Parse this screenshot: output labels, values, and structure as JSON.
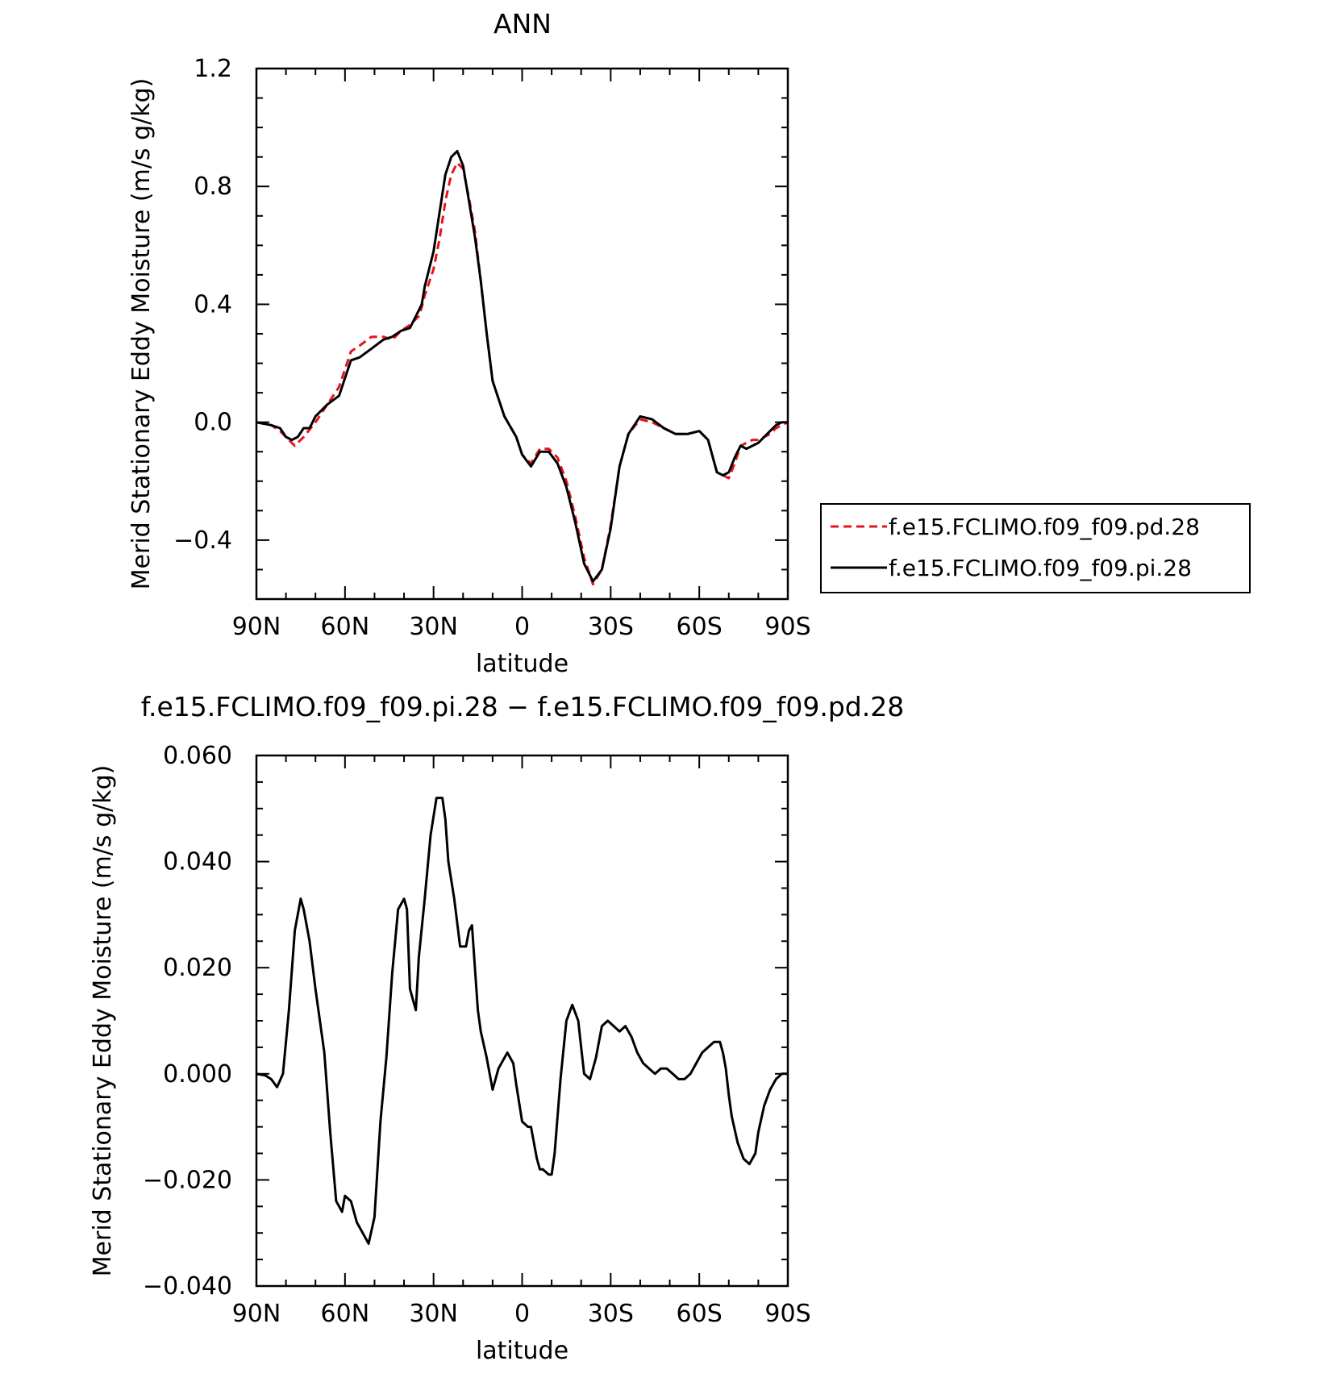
{
  "chart_data": [
    {
      "type": "line",
      "title": "ANN",
      "xlabel": "latitude",
      "ylabel": "Merid Stationary Eddy Moisture (m/s g/kg)",
      "xlim": [
        90,
        -90
      ],
      "ylim": [
        -0.6,
        1.2
      ],
      "x_ticks": [
        {
          "value": 90,
          "label": "90N"
        },
        {
          "value": 60,
          "label": "60N"
        },
        {
          "value": 30,
          "label": "30N"
        },
        {
          "value": 0,
          "label": "0"
        },
        {
          "value": -30,
          "label": "30S"
        },
        {
          "value": -60,
          "label": "60S"
        },
        {
          "value": -90,
          "label": "90S"
        }
      ],
      "y_ticks": [
        {
          "value": 1.2,
          "label": "1.2"
        },
        {
          "value": 0.8,
          "label": "0.8"
        },
        {
          "value": 0.4,
          "label": "0.4"
        },
        {
          "value": 0.0,
          "label": "0.0"
        },
        {
          "value": -0.4,
          "label": "−0.4"
        }
      ],
      "legend_position": "outside-right",
      "series": [
        {
          "name": "f.e15.FCLIMO.f09_f09.pd.28",
          "color": "#e8141c",
          "style": "dashed",
          "x": [
            90,
            85,
            82,
            79,
            77,
            74,
            70,
            66,
            62,
            58,
            55,
            51,
            47,
            44,
            41,
            38,
            35,
            34,
            33,
            30,
            28,
            26,
            24,
            22,
            20,
            18,
            16,
            14,
            12,
            10,
            6,
            2,
            0,
            -3,
            -6,
            -9,
            -12,
            -15,
            -18,
            -21,
            -24,
            -27,
            -30,
            -33,
            -36,
            -40,
            -44,
            -48,
            -52,
            -56,
            -60,
            -63,
            -66,
            -68,
            -70,
            -72,
            -74,
            -76,
            -78,
            -80,
            -82,
            -84,
            -86,
            -88,
            -90
          ],
          "y": [
            0.0,
            -0.01,
            -0.03,
            -0.06,
            -0.08,
            -0.05,
            0.0,
            0.06,
            0.12,
            0.24,
            0.26,
            0.29,
            0.29,
            0.28,
            0.31,
            0.33,
            0.36,
            0.39,
            0.43,
            0.52,
            0.62,
            0.75,
            0.84,
            0.88,
            0.86,
            0.76,
            0.65,
            0.48,
            0.3,
            0.14,
            0.02,
            -0.05,
            -0.11,
            -0.14,
            -0.09,
            -0.09,
            -0.12,
            -0.2,
            -0.32,
            -0.46,
            -0.55,
            -0.5,
            -0.35,
            -0.15,
            -0.04,
            0.01,
            0.0,
            -0.02,
            -0.04,
            -0.04,
            -0.03,
            -0.06,
            -0.17,
            -0.18,
            -0.19,
            -0.14,
            -0.08,
            -0.07,
            -0.06,
            -0.06,
            -0.05,
            -0.04,
            -0.02,
            -0.01,
            0.0
          ]
        },
        {
          "name": "f.e15.FCLIMO.f09_f09.pi.28",
          "color": "#000000",
          "style": "solid",
          "x": [
            90,
            85,
            82,
            80,
            78,
            76,
            74,
            72,
            70,
            66,
            62,
            58,
            55,
            51,
            47,
            44,
            41,
            38,
            35,
            34,
            33,
            30,
            28,
            26,
            24,
            22,
            20,
            18,
            16,
            14,
            12,
            10,
            6,
            2,
            0,
            -3,
            -6,
            -9,
            -12,
            -15,
            -18,
            -21,
            -24,
            -27,
            -30,
            -33,
            -36,
            -40,
            -44,
            -48,
            -52,
            -56,
            -60,
            -63,
            -66,
            -68,
            -70,
            -72,
            -74,
            -76,
            -78,
            -80,
            -82,
            -84,
            -86,
            -88,
            -90
          ],
          "y": [
            0.0,
            -0.01,
            -0.02,
            -0.05,
            -0.06,
            -0.05,
            -0.02,
            -0.02,
            0.02,
            0.06,
            0.09,
            0.21,
            0.22,
            0.25,
            0.28,
            0.29,
            0.31,
            0.32,
            0.38,
            0.4,
            0.46,
            0.58,
            0.71,
            0.84,
            0.9,
            0.92,
            0.87,
            0.75,
            0.63,
            0.48,
            0.3,
            0.14,
            0.02,
            -0.05,
            -0.11,
            -0.15,
            -0.1,
            -0.1,
            -0.14,
            -0.22,
            -0.34,
            -0.48,
            -0.54,
            -0.5,
            -0.36,
            -0.15,
            -0.04,
            0.02,
            0.01,
            -0.02,
            -0.04,
            -0.04,
            -0.03,
            -0.06,
            -0.17,
            -0.18,
            -0.17,
            -0.12,
            -0.08,
            -0.09,
            -0.08,
            -0.07,
            -0.05,
            -0.03,
            -0.01,
            0.0,
            0.0
          ]
        }
      ]
    },
    {
      "type": "line",
      "title": "f.e15.FCLIMO.f09_f09.pi.28 − f.e15.FCLIMO.f09_f09.pd.28",
      "xlabel": "latitude",
      "ylabel": "Merid Stationary Eddy Moisture (m/s g/kg)",
      "xlim": [
        90,
        -90
      ],
      "ylim": [
        -0.04,
        0.06
      ],
      "x_ticks": [
        {
          "value": 90,
          "label": "90N"
        },
        {
          "value": 60,
          "label": "60N"
        },
        {
          "value": 30,
          "label": "30N"
        },
        {
          "value": 0,
          "label": "0"
        },
        {
          "value": -30,
          "label": "30S"
        },
        {
          "value": -60,
          "label": "60S"
        },
        {
          "value": -90,
          "label": "90S"
        }
      ],
      "y_ticks": [
        {
          "value": 0.06,
          "label": "0.060"
        },
        {
          "value": 0.04,
          "label": "0.040"
        },
        {
          "value": 0.02,
          "label": "0.020"
        },
        {
          "value": 0.0,
          "label": "0.000"
        },
        {
          "value": -0.02,
          "label": "−0.020"
        },
        {
          "value": -0.04,
          "label": "−0.040"
        }
      ],
      "series": [
        {
          "color": "#000000",
          "style": "solid",
          "x": [
            90,
            87,
            85,
            83,
            81,
            79,
            77,
            75,
            74,
            72,
            70,
            67,
            65,
            63,
            61,
            60,
            58,
            56,
            54,
            52,
            50,
            48,
            46,
            44,
            42,
            40,
            39,
            38,
            36,
            35,
            33,
            31,
            29,
            27,
            26,
            25,
            23,
            21,
            19,
            18,
            17,
            15,
            14,
            12,
            10,
            8,
            6,
            5,
            3,
            2,
            0,
            -2,
            -3,
            -5,
            -6,
            -7,
            -9,
            -10,
            -11,
            -13,
            -15,
            -17,
            -19,
            -20,
            -21,
            -23,
            -25,
            -27,
            -29,
            -31,
            -33,
            -35,
            -37,
            -39,
            -41,
            -43,
            -45,
            -47,
            -49,
            -51,
            -53,
            -55,
            -57,
            -59,
            -61,
            -63,
            -65,
            -67,
            -68,
            -69,
            -70,
            -71,
            -73,
            -75,
            -77,
            -79,
            -80,
            -82,
            -84,
            -86,
            -88,
            -90
          ],
          "y": [
            0.0,
            -0.0003,
            -0.001,
            -0.0025,
            0.0,
            0.012,
            0.027,
            0.033,
            0.031,
            0.025,
            0.016,
            0.004,
            -0.011,
            -0.024,
            -0.026,
            -0.023,
            -0.024,
            -0.028,
            -0.03,
            -0.032,
            -0.027,
            -0.009,
            0.003,
            0.019,
            0.031,
            0.033,
            0.031,
            0.016,
            0.012,
            0.022,
            0.033,
            0.045,
            0.052,
            0.052,
            0.048,
            0.04,
            0.033,
            0.024,
            0.024,
            0.027,
            0.028,
            0.012,
            0.008,
            0.003,
            -0.003,
            0.001,
            0.003,
            0.004,
            0.002,
            -0.002,
            -0.009,
            -0.01,
            -0.01,
            -0.016,
            -0.018,
            -0.018,
            -0.019,
            -0.019,
            -0.015,
            -0.001,
            0.01,
            0.013,
            0.01,
            0.005,
            0.0,
            -0.001,
            0.003,
            0.009,
            0.01,
            0.009,
            0.008,
            0.009,
            0.007,
            0.004,
            0.002,
            0.001,
            0.0,
            0.001,
            0.001,
            0.0,
            -0.001,
            -0.001,
            0.0,
            0.002,
            0.004,
            0.005,
            0.006,
            0.006,
            0.004,
            0.001,
            -0.004,
            -0.008,
            -0.013,
            -0.016,
            -0.017,
            -0.015,
            -0.011,
            -0.006,
            -0.003,
            -0.001,
            0.0,
            0.0
          ]
        }
      ]
    }
  ]
}
